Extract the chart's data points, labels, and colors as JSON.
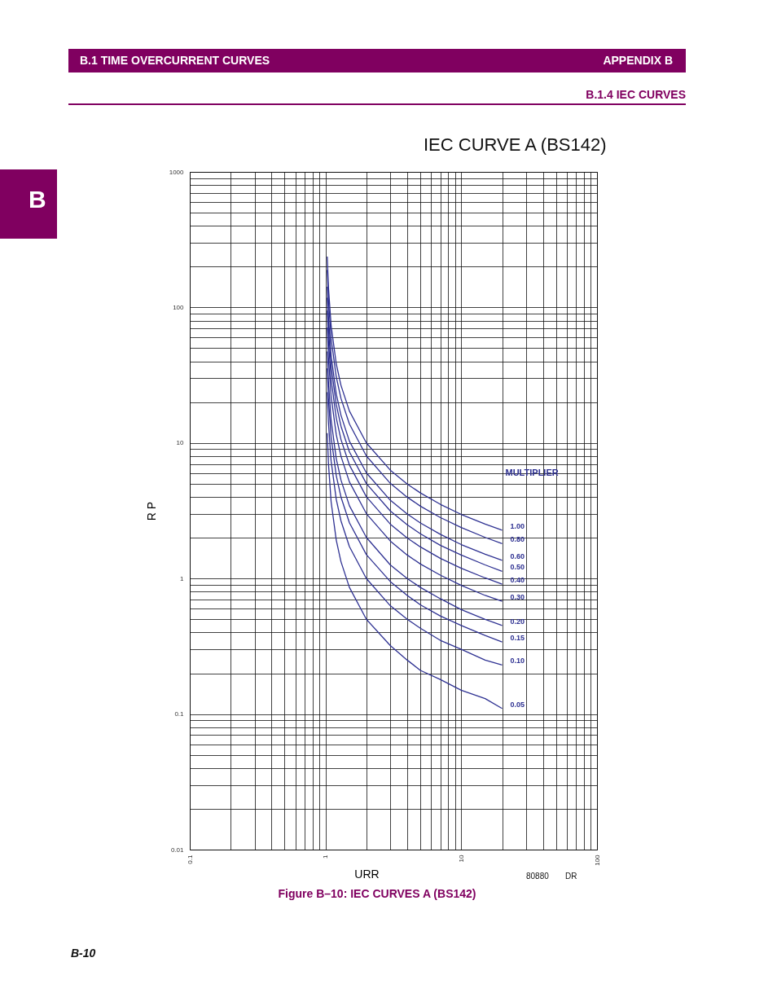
{
  "chart_data": {
    "type": "line",
    "title": "IEC CURVE A (BS142)",
    "xlabel": "URR",
    "ylabel": "R P",
    "legend_title": "MULTIPLIER",
    "x": [
      1.03,
      1.05,
      1.1,
      1.2,
      1.3,
      1.5,
      2,
      3,
      4,
      5,
      7,
      10,
      15,
      20
    ],
    "series": [
      {
        "name": "1.00",
        "color": "#2e3192",
        "values": [
          237,
          143,
          73.4,
          38.3,
          26.6,
          17.2,
          10.0,
          6.3,
          4.98,
          4.28,
          3.53,
          2.97,
          2.52,
          2.27
        ]
      },
      {
        "name": "0.80",
        "color": "#2e3192",
        "values": [
          189,
          115,
          58.7,
          30.7,
          21.3,
          13.8,
          8.02,
          5.04,
          3.98,
          3.42,
          2.82,
          2.38,
          2.01,
          1.81
        ]
      },
      {
        "name": "0.60",
        "color": "#2e3192",
        "values": [
          142,
          86.0,
          44.0,
          23.0,
          16.0,
          10.3,
          6.02,
          3.78,
          2.99,
          2.57,
          2.12,
          1.78,
          1.51,
          1.36
        ]
      },
      {
        "name": "0.50",
        "color": "#2e3192",
        "values": [
          118,
          71.7,
          36.7,
          19.2,
          13.3,
          8.6,
          5.02,
          3.15,
          2.49,
          2.14,
          1.76,
          1.49,
          1.26,
          1.13
        ]
      },
      {
        "name": "0.40",
        "color": "#2e3192",
        "values": [
          94.7,
          57.4,
          29.4,
          15.3,
          10.6,
          6.88,
          4.01,
          2.52,
          1.99,
          1.71,
          1.41,
          1.19,
          1.01,
          0.91
        ]
      },
      {
        "name": "0.30",
        "color": "#2e3192",
        "values": [
          71.0,
          43.0,
          22.0,
          11.5,
          7.98,
          5.16,
          3.01,
          1.89,
          1.49,
          1.28,
          1.06,
          0.89,
          0.75,
          0.68
        ]
      },
      {
        "name": "0.20",
        "color": "#2e3192",
        "values": [
          47.3,
          28.7,
          14.7,
          7.66,
          5.32,
          3.44,
          2.01,
          1.26,
          1.0,
          0.86,
          0.71,
          0.59,
          0.5,
          0.45
        ]
      },
      {
        "name": "0.15",
        "color": "#2e3192",
        "values": [
          35.5,
          21.5,
          11.0,
          5.75,
          3.99,
          2.58,
          1.5,
          0.95,
          0.75,
          0.64,
          0.53,
          0.45,
          0.38,
          0.34
        ]
      },
      {
        "name": "0.10",
        "color": "#2e3192",
        "values": [
          23.7,
          14.3,
          7.34,
          3.83,
          2.66,
          1.72,
          1.0,
          0.63,
          0.5,
          0.43,
          0.35,
          0.3,
          0.25,
          0.23
        ]
      },
      {
        "name": "0.05",
        "color": "#2e3192",
        "values": [
          11.8,
          7.17,
          3.67,
          1.92,
          1.33,
          0.86,
          0.5,
          0.32,
          0.25,
          0.21,
          0.18,
          0.15,
          0.13,
          0.11
        ]
      }
    ],
    "log": "xy",
    "xlim": [
      0.1,
      100
    ],
    "xticks": [
      0.1,
      1,
      10,
      100
    ],
    "ylim": [
      0.01,
      1000
    ],
    "yticks": [
      0.01,
      0.1,
      1,
      10,
      100,
      1000
    ],
    "grid": true,
    "legend": false,
    "marker": "none",
    "line_style": "solid",
    "annotations": [
      "B.1 TIME OVERCURRENT CURVES",
      "APPENDIX B",
      "B.1.4 IEC CURVES",
      "B",
      "80880",
      "DR",
      "Figure B–10: IEC CURVES A (BS142)",
      "B-10"
    ]
  }
}
